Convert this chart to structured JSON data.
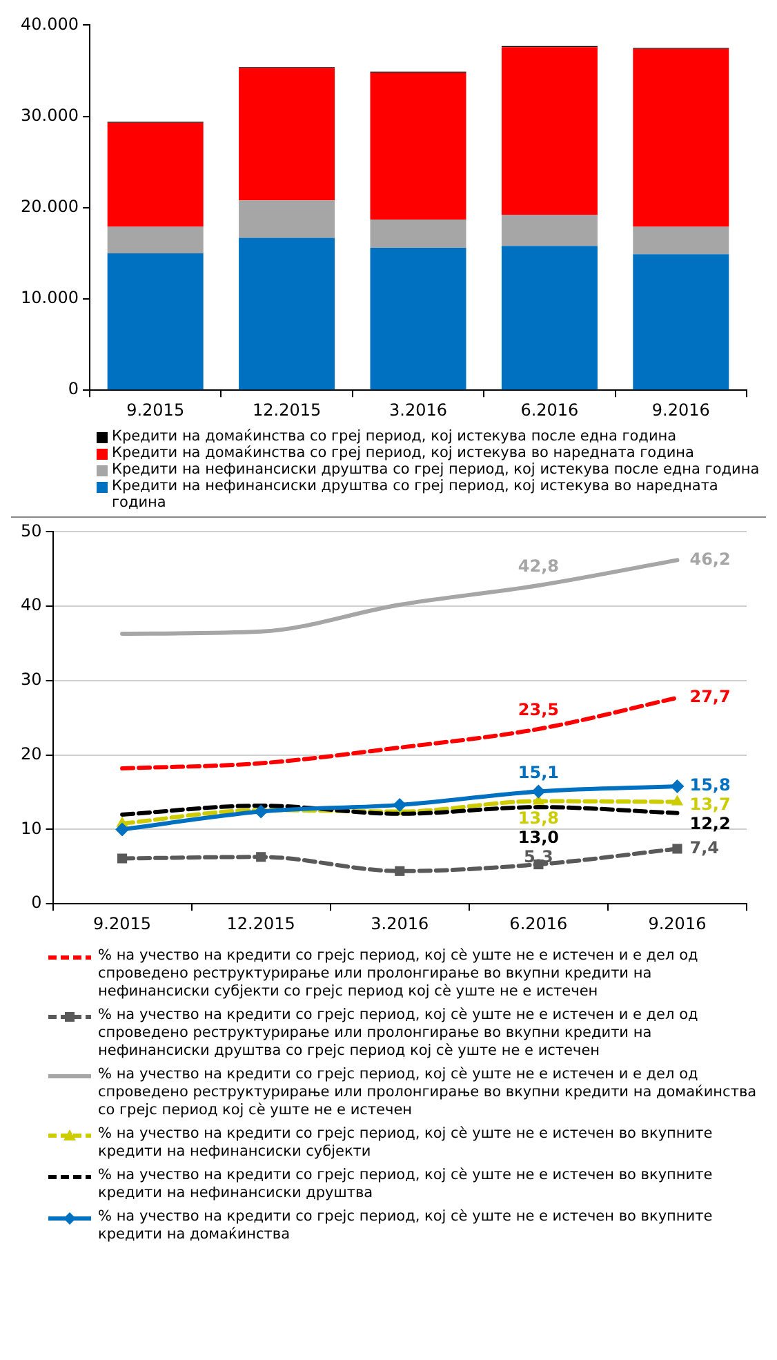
{
  "chart_data": [
    {
      "type": "bar",
      "stacked": true,
      "categories": [
        "9.2015",
        "12.2015",
        "3.2016",
        "6.2016",
        "9.2016"
      ],
      "series": [
        {
          "name": "Кредити на нефинансиски друштва со греј период, кој истекува во наредната година",
          "color": "#0070c0",
          "values": [
            15000,
            16700,
            15600,
            15800,
            14900
          ]
        },
        {
          "name": "Кредити на нефинансиски друштва со греј период, кој истекува после една година",
          "color": "#a6a6a6",
          "values": [
            2900,
            4100,
            3100,
            3400,
            3000
          ]
        },
        {
          "name": "Кредити на домаќинства со греј период, кој истекува во наредната година",
          "color": "#ff0000",
          "values": [
            11400,
            14500,
            16100,
            18400,
            19500
          ]
        },
        {
          "name": "Кредити на домаќинства со греј период, кој истекува после една година",
          "color": "#000000",
          "values": [
            100,
            100,
            100,
            100,
            100
          ]
        }
      ],
      "ylim": [
        0,
        40000
      ],
      "yticks": [
        {
          "value": 0,
          "label": "0"
        },
        {
          "value": 10000,
          "label": "10.000"
        },
        {
          "value": 20000,
          "label": "20.000"
        },
        {
          "value": 30000,
          "label": "30.000"
        },
        {
          "value": 40000,
          "label": "40.000"
        }
      ],
      "grid": false,
      "legend": "bottom"
    },
    {
      "type": "line",
      "categories": [
        "9.2015",
        "12.2015",
        "3.2016",
        "6.2016",
        "9.2016"
      ],
      "series": [
        {
          "name": "% на учество на кредити со грејс период, кој сѐ уште не е истечен и е дел од спроведено реструктурирање или пролонгирање во вкупни кредити на нефинансиски субјекти со грејс период кој сѐ уште не е истечен",
          "color": "#ff0000",
          "line_style": "dashed",
          "marker": "none",
          "values": [
            18.2,
            18.9,
            21.0,
            23.5,
            27.7
          ],
          "value_labels": [
            null,
            null,
            null,
            "23,5",
            "27,7"
          ]
        },
        {
          "name": "% на учество на кредити со грејс период, кој сѐ уште не е истечен и е дел од спроведено реструктурирање или пролонгирање во вкупни кредити на нефинансиски друштва со грејс период кој сѐ уште не е истечен",
          "color": "#595959",
          "line_style": "dashed",
          "marker": "square",
          "values": [
            6.1,
            6.3,
            4.4,
            5.3,
            7.4
          ],
          "value_labels": [
            null,
            null,
            null,
            "5,3",
            "7,4"
          ]
        },
        {
          "name": "% на учество на кредити со грејс период, кој сѐ уште не е истечен и е дел од спроведено реструктурирање или пролонгирање во вкупни кредити на домаќинства со грејс период кој сѐ уште не е истечен",
          "color": "#a6a6a6",
          "line_style": "solid",
          "marker": "none",
          "values": [
            36.3,
            36.6,
            40.2,
            42.8,
            46.2
          ],
          "value_labels": [
            null,
            null,
            null,
            "42,8",
            "46,2"
          ]
        },
        {
          "name": "% на учество на кредити со грејс период, кој сѐ уште не е истечен во вкупните кредити на нефинансиски субјекти",
          "color": "#cccc00",
          "line_style": "dashed",
          "marker": "triangle",
          "values": [
            10.8,
            12.6,
            12.4,
            13.8,
            13.7
          ],
          "value_labels": [
            null,
            null,
            null,
            "13,8",
            "13,7"
          ]
        },
        {
          "name": "% на учество на кредити со грејс период, кој сѐ уште не е истечен во вкупните кредити на нефинансиски друштва",
          "color": "#000000",
          "line_style": "dashed",
          "marker": "none",
          "values": [
            12.0,
            13.2,
            12.1,
            13.0,
            12.2
          ],
          "value_labels": [
            null,
            null,
            null,
            "13,0",
            "12,2"
          ]
        },
        {
          "name": "% на учество на кредити со грејс период, кој сѐ уште не е истечен во вкупните кредити на домаќинства",
          "color": "#0070c0",
          "line_style": "solid",
          "marker": "diamond",
          "values": [
            10.0,
            12.4,
            13.3,
            15.1,
            15.8
          ],
          "value_labels": [
            null,
            null,
            null,
            "15,1",
            "15,8"
          ]
        }
      ],
      "ylim": [
        0,
        50
      ],
      "yticks": [
        0,
        10,
        20,
        30,
        40,
        50
      ],
      "grid": "y",
      "legend": "bottom"
    }
  ]
}
